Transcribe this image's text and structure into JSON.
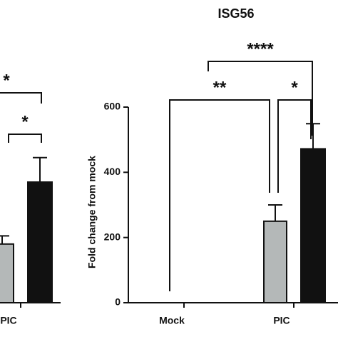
{
  "chart_data": [
    {
      "type": "bar",
      "categories": [
        "PIC"
      ],
      "ylim": [
        0,
        600
      ],
      "series": [
        {
          "color": "#b4b8b8",
          "values": [
            180
          ],
          "errors": [
            25
          ]
        },
        {
          "color": "#111111",
          "values": [
            370
          ],
          "errors": [
            75
          ]
        }
      ],
      "annotations": [
        "*",
        "*"
      ]
    },
    {
      "type": "bar",
      "title": "ISG56",
      "y_label": "Fold change from mock",
      "categories": [
        "Mock",
        "PIC"
      ],
      "ylim": [
        0,
        600
      ],
      "yticks": [
        0,
        200,
        400,
        600
      ],
      "series": [
        {
          "color": "#b4b8b8",
          "values": [
            0,
            250
          ],
          "errors": [
            0,
            50
          ]
        },
        {
          "color": "#111111",
          "values": [
            0,
            472
          ],
          "errors": [
            0,
            77
          ]
        }
      ],
      "annotations": [
        "****",
        "**",
        "*"
      ]
    }
  ]
}
